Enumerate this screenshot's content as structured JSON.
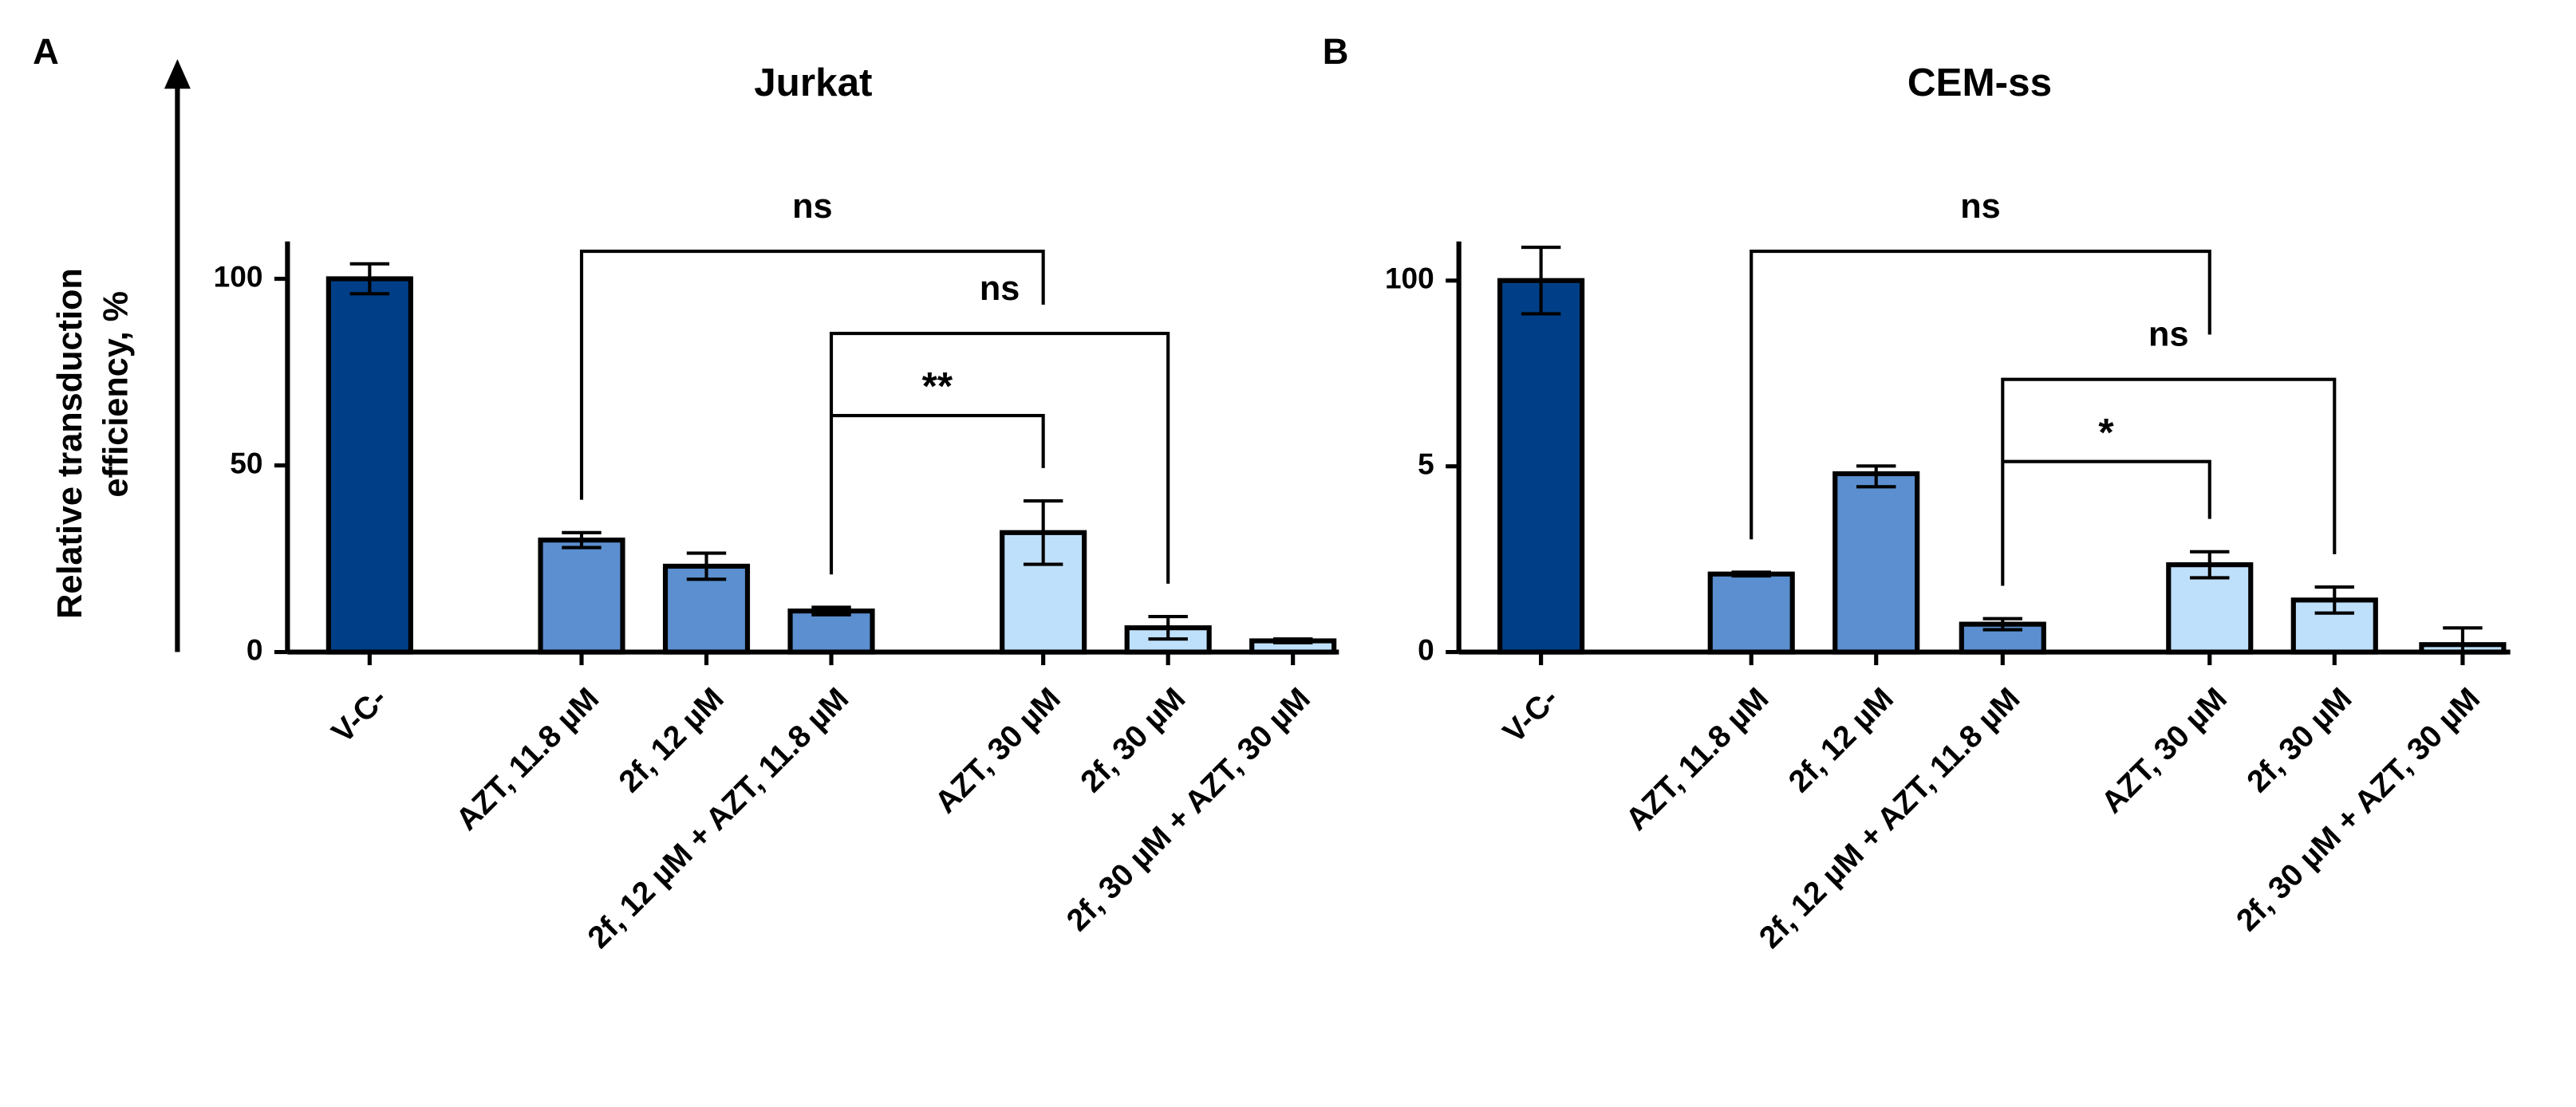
{
  "y_label": [
    "Relative transduction",
    "efficiency, %"
  ],
  "chart_data": [
    {
      "type": "bar",
      "panel": "A",
      "title": "Jurkat",
      "categories": [
        "V-C-",
        "AZT, 11.8 µM",
        "2f, 12 µM",
        "2f, 12 µM + AZT, 11.8 µM",
        "AZT, 30 µM",
        "2f, 30 µM",
        "2f, 30 µM + AZT, 30 µM"
      ],
      "values": [
        100,
        30,
        23,
        11,
        32,
        6.5,
        3
      ],
      "errors": [
        4,
        2,
        3.5,
        1,
        8.5,
        3,
        0.5
      ],
      "colors": [
        "#003f87",
        "#5b8fd0",
        "#5b8fd0",
        "#5b8fd0",
        "#bfe0fb",
        "#bfe0fb",
        "#bfe0fb"
      ],
      "ylim": [
        0,
        110
      ],
      "yticks": [
        0,
        50,
        100
      ],
      "yscale": "linear",
      "brackets": [
        {
          "label": "ns",
          "from": 1,
          "to": 4
        },
        {
          "label": "ns",
          "from": 3,
          "to": 5
        },
        {
          "label": "**",
          "from": 3,
          "to": 4
        }
      ]
    },
    {
      "type": "bar",
      "panel": "B",
      "title": "CEM-ss",
      "categories": [
        "V-C-",
        "AZT, 11.8 µM",
        "2f, 12 µM",
        "2f, 12 µM + AZT, 11.8 µM",
        "AZT, 30 µM",
        "2f, 30 µM",
        "2f, 30 µM + AZT, 30 µM"
      ],
      "values": [
        100,
        2.1,
        4.8,
        0.75,
        2.35,
        1.4,
        0.2
      ],
      "errors": [
        17,
        0.05,
        0.35,
        0.15,
        0.35,
        0.35,
        0.45
      ],
      "colors": [
        "#003f87",
        "#5b8fd0",
        "#5b8fd0",
        "#5b8fd0",
        "#bfe0fb",
        "#bfe0fb",
        "#bfe0fb"
      ],
      "ylim": [
        0,
        120
      ],
      "yticks": [
        0,
        5,
        100
      ],
      "yscale": "tick-spaced",
      "brackets": [
        {
          "label": "ns",
          "from": 1,
          "to": 4
        },
        {
          "label": "ns",
          "from": 3,
          "to": 5
        },
        {
          "label": "*",
          "from": 3,
          "to": 4
        }
      ]
    }
  ]
}
